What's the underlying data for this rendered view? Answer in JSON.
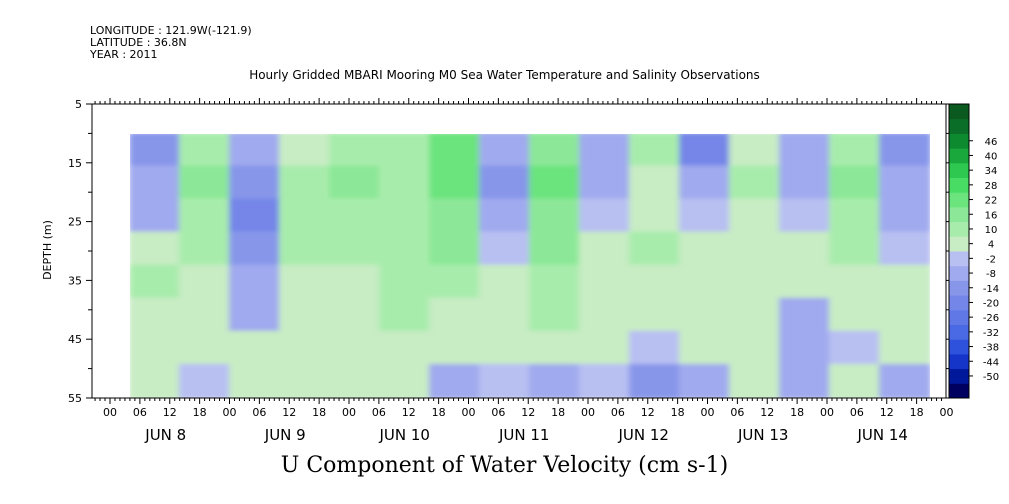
{
  "header": {
    "longitude": "LONGITUDE : 121.9W(-121.9)",
    "latitude": "LATITUDE : 36.8N",
    "year": "YEAR : 2011",
    "title": "Hourly Gridded MBARI Mooring M0 Sea Water Temperature and Salinity Observations"
  },
  "chart_data": {
    "type": "heatmap",
    "title": "Hourly Gridded MBARI Mooring M0 Sea Water Temperature and Salinity Observations",
    "variable": "U Component of Water Velocity (cm s-1)",
    "ylabel": "DEPTH (m)",
    "xlabel": "",
    "ylim": [
      55,
      5
    ],
    "y_ticks": [
      5,
      15,
      25,
      35,
      45,
      55
    ],
    "x_days": [
      "JUN  8",
      "JUN  9",
      "JUN 10",
      "JUN 11",
      "JUN 12",
      "JUN 13",
      "JUN 14"
    ],
    "x_hour_labels": [
      "00",
      "06",
      "12",
      "18"
    ],
    "data_depth_range_m": [
      10,
      55
    ],
    "colorbar": {
      "levels": [
        -50,
        -44,
        -38,
        -32,
        -26,
        -20,
        -14,
        -8,
        -2,
        4,
        10,
        16,
        22,
        28,
        34,
        40,
        46
      ],
      "colors": [
        "#000060",
        "#00189a",
        "#1535c8",
        "#2f52dc",
        "#4a69e4",
        "#6078e6",
        "#7486e8",
        "#8896ea",
        "#a0aaee",
        "#b8c0f2",
        "#c8ecc4",
        "#a8ecac",
        "#8ce898",
        "#6ce47e",
        "#48dc64",
        "#2ec850",
        "#1aa83c",
        "#0d8a30",
        "#0b6e28",
        "#0a5a20"
      ]
    },
    "velocity_columns": [
      {
        "time": "JUN 8 04",
        "values": [
          -10,
          -8,
          -4,
          4,
          10,
          8,
          6,
          4
        ]
      },
      {
        "time": "JUN 8 12",
        "values": [
          12,
          16,
          14,
          10,
          8,
          6,
          4,
          -2
        ]
      },
      {
        "time": "JUN 8 18",
        "values": [
          -6,
          -14,
          -18,
          -14,
          -8,
          -4,
          6,
          8
        ]
      },
      {
        "time": "JUN 9 06",
        "values": [
          8,
          10,
          12,
          10,
          8,
          4,
          6,
          4
        ]
      },
      {
        "time": "JUN 9 18",
        "values": [
          14,
          18,
          14,
          10,
          8,
          8,
          6,
          4
        ]
      },
      {
        "time": "JUN 10 06",
        "values": [
          10,
          10,
          12,
          12,
          14,
          10,
          6,
          4
        ]
      },
      {
        "time": "JUN 10 18",
        "values": [
          22,
          24,
          20,
          16,
          12,
          6,
          4,
          -4
        ]
      },
      {
        "time": "JUN 11 00",
        "values": [
          -8,
          -10,
          -4,
          2,
          6,
          6,
          4,
          2
        ]
      },
      {
        "time": "JUN 11 06",
        "values": [
          20,
          22,
          20,
          18,
          14,
          10,
          6,
          -6
        ]
      },
      {
        "time": "JUN 11 18",
        "values": [
          -8,
          -6,
          -2,
          4,
          6,
          8,
          6,
          2
        ]
      },
      {
        "time": "JUN 12 06",
        "values": [
          10,
          8,
          8,
          10,
          8,
          6,
          2,
          -10
        ]
      },
      {
        "time": "JUN 12 12",
        "values": [
          -16,
          -8,
          2,
          6,
          8,
          6,
          4,
          -6
        ]
      },
      {
        "time": "JUN 13 00",
        "values": [
          8,
          10,
          8,
          8,
          6,
          6,
          4,
          4
        ]
      },
      {
        "time": "JUN 13 12",
        "values": [
          -4,
          -6,
          -2,
          4,
          6,
          -6,
          -8,
          -4
        ]
      },
      {
        "time": "JUN 14 06",
        "values": [
          12,
          16,
          14,
          10,
          8,
          4,
          2,
          4
        ]
      },
      {
        "time": "JUN 14 18",
        "values": [
          -12,
          -8,
          -4,
          2,
          6,
          8,
          8,
          -4
        ]
      }
    ]
  }
}
